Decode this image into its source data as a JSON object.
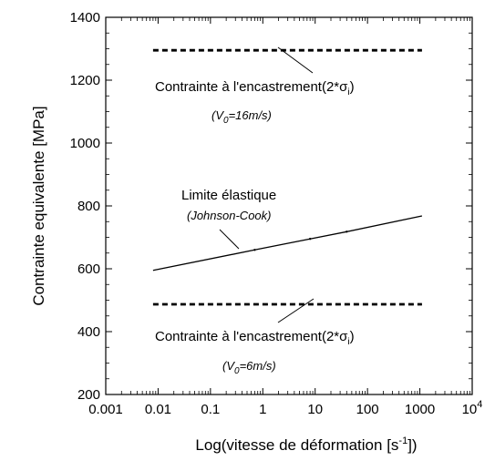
{
  "chart_data": {
    "type": "line",
    "xscale": "log",
    "xlabel": "Log(vitesse de déformation [s",
    "xlabel_sup": "-1",
    "xlabel_end": "])",
    "ylabel": "Contrainte equivalente [MPa]",
    "xlim": [
      0.001,
      10000
    ],
    "ylim": [
      200,
      1400
    ],
    "x_ticks": [
      {
        "value": 0.001,
        "label": "0.001"
      },
      {
        "value": 0.01,
        "label": "0.01"
      },
      {
        "value": 0.1,
        "label": "0.1"
      },
      {
        "value": 1,
        "label": "1"
      },
      {
        "value": 10,
        "label": "10"
      },
      {
        "value": 100,
        "label": "100"
      },
      {
        "value": 1000,
        "label": "1000"
      },
      {
        "value": 10000,
        "label": "10",
        "sup": "4"
      }
    ],
    "y_ticks": [
      {
        "value": 200,
        "label": "200"
      },
      {
        "value": 400,
        "label": "400"
      },
      {
        "value": 600,
        "label": "600"
      },
      {
        "value": 800,
        "label": "800"
      },
      {
        "value": 1000,
        "label": "1000"
      },
      {
        "value": 1200,
        "label": "1200"
      },
      {
        "value": 1400,
        "label": "1400"
      }
    ],
    "grid": false,
    "series": [
      {
        "style": "solid",
        "x": [
          0.008,
          0.7,
          8,
          40,
          1100
        ],
        "y": [
          595,
          660,
          695,
          718,
          768
        ],
        "annotation": {
          "text": "Limite élastique",
          "subtext": "(Johnson-Cook)"
        }
      },
      {
        "style": "dashed",
        "x": [
          0.008,
          1100
        ],
        "y": [
          1295,
          1295
        ],
        "annotation": {
          "text": "Contrainte à l'encastrement(2*σ",
          "text_sub": "i",
          "text_end": ")",
          "subtext_pre": "(V",
          "subtext_sub": "0",
          "subtext_post": "=16m/s)"
        }
      },
      {
        "style": "dashed",
        "x": [
          0.008,
          1100
        ],
        "y": [
          487,
          487
        ],
        "annotation": {
          "text": "Contrainte à l'encastrement(2*σ",
          "text_sub": "i",
          "text_end": ")",
          "subtext_pre": "(V",
          "subtext_sub": "0",
          "subtext_post": "=6m/s)"
        }
      }
    ],
    "colors": {
      "line": "#000000",
      "background": "#ffffff"
    }
  }
}
